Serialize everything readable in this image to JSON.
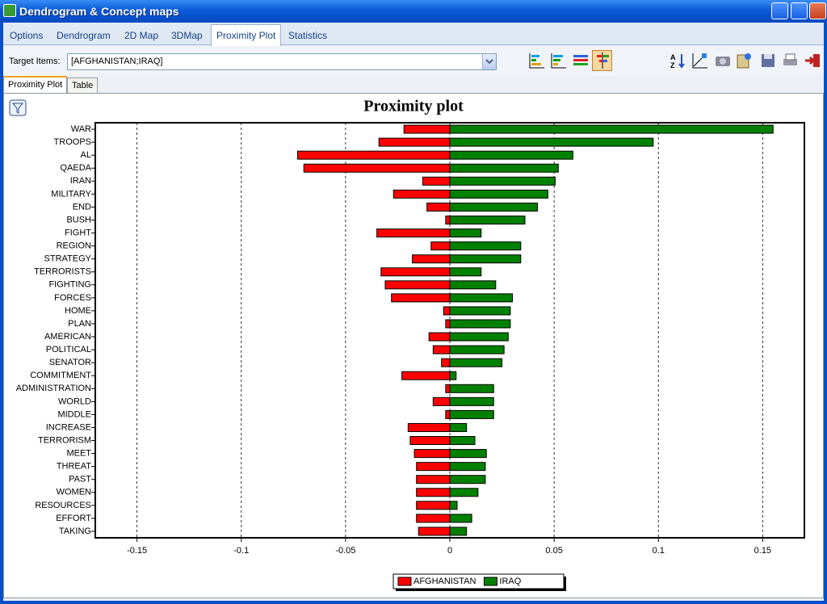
{
  "window": {
    "title": "Dendrogram & Concept maps"
  },
  "tabs": [
    "Options",
    "Dendrogram",
    "2D Map",
    "3DMap",
    "Proximity Plot",
    "Statistics"
  ],
  "toolbar": {
    "target_label": "Target Items:",
    "target_value": "[AFGHANISTAN;IRAQ]"
  },
  "subtabs": [
    "Proximity Plot",
    "Table"
  ],
  "chart_data": {
    "type": "bar",
    "orientation": "horizontal",
    "title": "Proximity plot",
    "categories": [
      "WAR",
      "TROOPS",
      "AL",
      "QAEDA",
      "IRAN",
      "MILITARY",
      "END",
      "BUSH",
      "FIGHT",
      "REGION",
      "STRATEGY",
      "TERRORISTS",
      "FIGHTING",
      "FORCES",
      "HOME",
      "PLAN",
      "AMERICAN",
      "POLITICAL",
      "SENATOR",
      "COMMITMENT",
      "ADMINISTRATION",
      "WORLD",
      "MIDDLE",
      "INCREASE",
      "TERRORISM",
      "MEET",
      "THREAT",
      "PAST",
      "WOMEN",
      "RESOURCES",
      "EFFORT",
      "TAKING"
    ],
    "series": [
      {
        "name": "AFGHANISTAN",
        "color": "#ff0000",
        "values": [
          -0.022,
          -0.034,
          -0.073,
          -0.07,
          -0.013,
          -0.027,
          -0.011,
          -0.002,
          -0.035,
          -0.009,
          -0.018,
          -0.033,
          -0.031,
          -0.028,
          -0.003,
          -0.002,
          -0.01,
          -0.008,
          -0.004,
          -0.023,
          -0.002,
          -0.008,
          -0.002,
          -0.02,
          -0.019,
          -0.017,
          -0.016,
          -0.016,
          -0.016,
          -0.016,
          -0.016,
          -0.015
        ]
      },
      {
        "name": "IRAQ",
        "color": "#008000",
        "values": [
          0.155,
          0.0975,
          0.059,
          0.052,
          0.0505,
          0.047,
          0.042,
          0.036,
          0.015,
          0.034,
          0.034,
          0.015,
          0.022,
          0.03,
          0.029,
          0.029,
          0.028,
          0.026,
          0.025,
          0.003,
          0.021,
          0.021,
          0.021,
          0.008,
          0.012,
          0.0175,
          0.017,
          0.017,
          0.0135,
          0.0035,
          0.0105,
          0.008
        ]
      }
    ],
    "xlim": [
      -0.17,
      0.17
    ],
    "xticks": [
      -0.15,
      -0.1,
      -0.05,
      0,
      0.05,
      0.1,
      0.15
    ],
    "grid": true,
    "legend": "bottom"
  }
}
